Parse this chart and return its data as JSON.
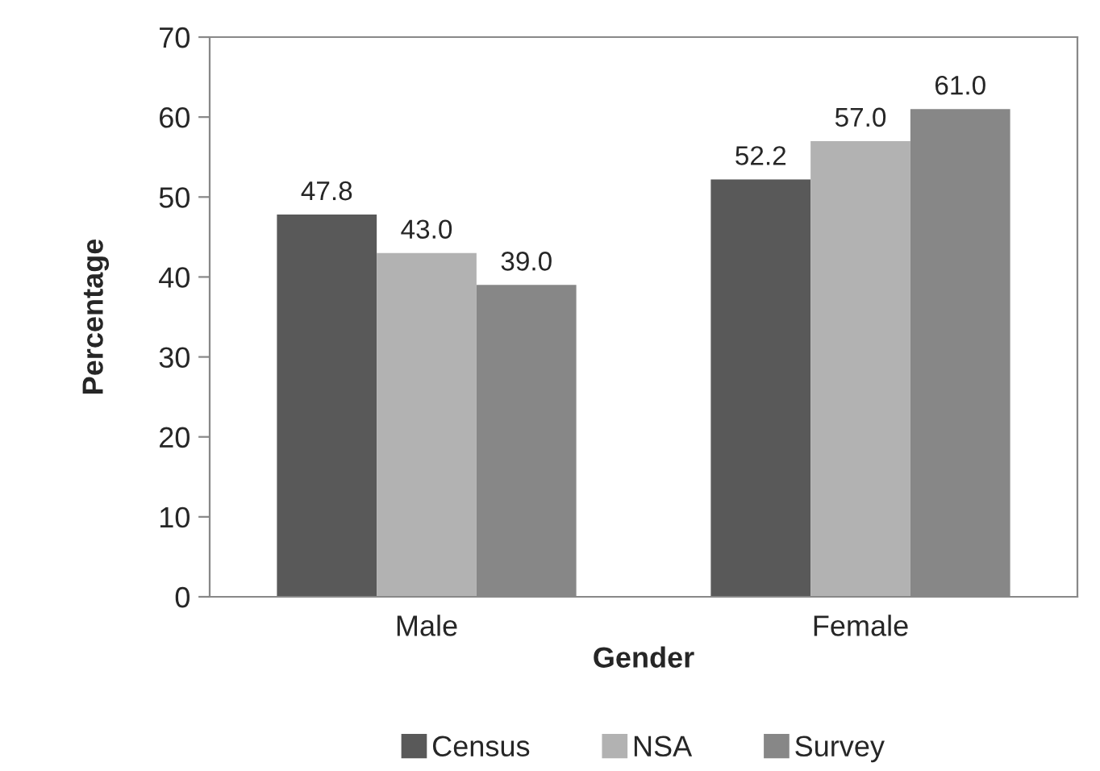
{
  "chart_data": {
    "type": "bar",
    "xlabel": "Gender",
    "ylabel": "Percentage",
    "categories": [
      "Male",
      "Female"
    ],
    "series": [
      {
        "name": "Census",
        "color": "#595959",
        "values": [
          47.8,
          52.2
        ],
        "value_labels": [
          "47.8",
          "52.2"
        ]
      },
      {
        "name": "NSA",
        "color": "#b2b2b2",
        "values": [
          43.0,
          57.0
        ],
        "value_labels": [
          "43.0",
          "57.0"
        ]
      },
      {
        "name": "Survey",
        "color": "#878787",
        "values": [
          39.0,
          61.0
        ],
        "value_labels": [
          "39.0",
          "61.0"
        ]
      }
    ],
    "ylim": [
      0,
      70
    ],
    "yticks": [
      0,
      10,
      20,
      30,
      40,
      50,
      60,
      70
    ],
    "grid": false,
    "legend": "bottom"
  }
}
